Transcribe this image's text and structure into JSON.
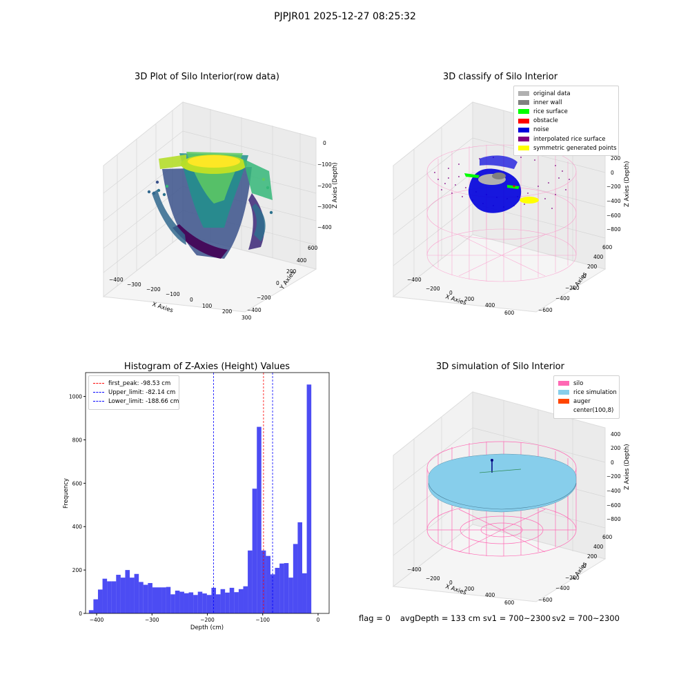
{
  "suptitle": "PJPJR01 2025-12-27 08:25:32",
  "colors": {
    "original_data": "#b0b0b0",
    "inner_wall": "#808080",
    "rice_surface": "#00ff00",
    "obstacle": "#ff0000",
    "noise": "#0000dd",
    "interpolated_rice_surface": "#800080",
    "symmetric_generated_points": "#ffff00",
    "silo": "#ff69b4",
    "rice_simulation": "#87ceeb",
    "auger": "#ff4500",
    "hist_bar": "#0000ee"
  },
  "panels": {
    "top_left": {
      "title": "3D Plot of Silo Interior(row data)",
      "xlabel": "X Axies",
      "ylabel": "Y Axies",
      "zlabel": "Z Axies (Depth)",
      "x_ticks": [
        "−400",
        "−300",
        "−200",
        "−100",
        "0",
        "100",
        "200",
        "300"
      ],
      "y_ticks": [
        "−400",
        "−200",
        "0",
        "200",
        "400",
        "600"
      ],
      "z_ticks": [
        "0",
        "−100",
        "−200",
        "−300",
        "−400"
      ],
      "colormap": "viridis"
    },
    "top_right": {
      "title": "3D classify of Silo Interior",
      "xlabel": "X Axies",
      "ylabel": "Y Axies",
      "zlabel": "Z Axies (Depth)",
      "x_ticks": [
        "−400",
        "−200",
        "0",
        "200",
        "400",
        "600"
      ],
      "y_ticks": [
        "−600",
        "−400",
        "−200",
        "0",
        "200",
        "400",
        "600"
      ],
      "z_ticks": [
        "200",
        "0",
        "−200",
        "−400",
        "−600",
        "−800"
      ],
      "z_ticks_visible": [
        "200",
        "0",
        "−200",
        "−400",
        "−600",
        "−800"
      ],
      "legend": [
        {
          "label": "original data",
          "color_key": "original_data"
        },
        {
          "label": "inner wall",
          "color_key": "inner_wall"
        },
        {
          "label": "rice surface",
          "color_key": "rice_surface"
        },
        {
          "label": "obstacle",
          "color_key": "obstacle"
        },
        {
          "label": "noise",
          "color_key": "noise"
        },
        {
          "label": "interpolated rice surface",
          "color_key": "interpolated_rice_surface"
        },
        {
          "label": "symmetric generated points",
          "color_key": "symmetric_generated_points"
        }
      ]
    },
    "bottom_right": {
      "title": "3D simulation of Silo Interior",
      "xlabel": "X Axies",
      "ylabel": "Y Axies",
      "zlabel": "Z Axies (Depth)",
      "x_ticks": [
        "−400",
        "−200",
        "0",
        "200",
        "400",
        "600"
      ],
      "y_ticks": [
        "−600",
        "−400",
        "−200",
        "0",
        "200",
        "400",
        "600"
      ],
      "z_ticks": [
        "400",
        "200",
        "0",
        "−200",
        "−400",
        "−600",
        "−800"
      ],
      "legend": [
        {
          "label": "silo",
          "color_key": "silo"
        },
        {
          "label": "rice simulation",
          "color_key": "rice_simulation"
        },
        {
          "label": "auger",
          "color_key": "auger"
        },
        {
          "label": "center(100,8)",
          "color_key": ""
        }
      ]
    },
    "footer": {
      "flag": "flag = 0",
      "avg_depth": "avgDepth = 133 cm",
      "sv1": "sv1 = 700~2300",
      "sv2": "sv2 = 700~2300"
    }
  },
  "chart_data": {
    "type": "bar",
    "title": "Histogram of Z-Axies (Height) Values",
    "xlabel": "Depth (cm)",
    "ylabel": "Frequency",
    "xlim": [
      -420,
      20
    ],
    "ylim": [
      0,
      1110
    ],
    "x_ticks": [
      -400,
      -300,
      -200,
      -100,
      0
    ],
    "x_tick_labels": [
      "−400",
      "−300",
      "−200",
      "−100",
      "0"
    ],
    "y_ticks": [
      0,
      200,
      400,
      600,
      800,
      1000
    ],
    "y_tick_labels": [
      "0",
      "200",
      "400",
      "600",
      "800",
      "1000"
    ],
    "bin_width": 8.2,
    "bin_starts": [
      -414,
      -405.8,
      -397.6,
      -389.4,
      -381.2,
      -373,
      -364.8,
      -356.6,
      -348.4,
      -340.2,
      -332,
      -323.8,
      -315.6,
      -307.4,
      -299.2,
      -291,
      -282.8,
      -274.6,
      -266.4,
      -258.2,
      -250,
      -241.8,
      -233.6,
      -225.4,
      -217.2,
      -209,
      -200.8,
      -192.6,
      -184.4,
      -176.2,
      -168,
      -159.8,
      -151.6,
      -143.4,
      -135.2,
      -127,
      -118.8,
      -110.6,
      -102.4,
      -94.2,
      -86,
      -77.8,
      -69.6,
      -61.4,
      -53.2,
      -45,
      -36.8,
      -28.6,
      -20.4,
      -12.2,
      -4
    ],
    "values": [
      15,
      65,
      110,
      160,
      148,
      148,
      178,
      165,
      200,
      165,
      182,
      145,
      132,
      140,
      120,
      120,
      120,
      122,
      88,
      105,
      100,
      93,
      97,
      85,
      100,
      92,
      85,
      118,
      88,
      112,
      96,
      118,
      98,
      112,
      125,
      290,
      575,
      860,
      290,
      265,
      180,
      210,
      230,
      232,
      165,
      320,
      420,
      185,
      1055,
      0,
      0
    ],
    "vlines": [
      {
        "label": "first_peak: -98.53 cm",
        "x": -98.53,
        "color": "#ff0000"
      },
      {
        "label": "Upper_limit: -82.14 cm",
        "x": -82.14,
        "color": "#0000ff"
      },
      {
        "label": "Lower_limit: -188.66 cm",
        "x": -188.66,
        "color": "#0000ff"
      }
    ]
  }
}
